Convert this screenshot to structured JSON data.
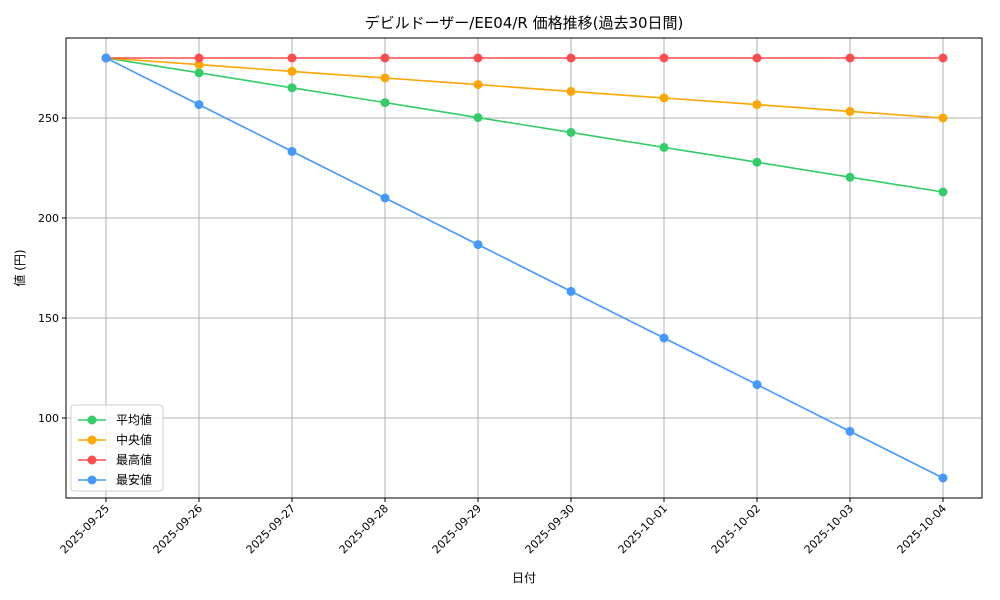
{
  "chart_data": {
    "type": "line",
    "title": "デビルドーザー/EE04/R 価格推移(過去30日間)",
    "xlabel": "日付",
    "ylabel": "値 (円)",
    "categories": [
      "2025-09-25",
      "2025-09-26",
      "2025-09-27",
      "2025-09-28",
      "2025-09-29",
      "2025-09-30",
      "2025-10-01",
      "2025-10-02",
      "2025-10-03",
      "2025-10-04"
    ],
    "ylim": [
      60,
      290
    ],
    "yticks": [
      100,
      150,
      200,
      250
    ],
    "grid": true,
    "legend_position": "lower-left",
    "series": [
      {
        "name": "平均値",
        "color": "#33cc66",
        "values": [
          280,
          272.6,
          265.1,
          257.7,
          250.2,
          242.8,
          235.3,
          227.9,
          220.4,
          213
        ]
      },
      {
        "name": "中央値",
        "color": "#ffa500",
        "values": [
          280,
          276.7,
          273.3,
          270,
          266.7,
          263.3,
          260,
          256.7,
          253.3,
          250
        ]
      },
      {
        "name": "最高値",
        "color": "#ff4d4d",
        "values": [
          280,
          280,
          280,
          280,
          280,
          280,
          280,
          280,
          280,
          280
        ]
      },
      {
        "name": "最安値",
        "color": "#4499ff",
        "values": [
          280,
          256.7,
          233.3,
          210,
          186.7,
          163.3,
          140,
          116.7,
          93.3,
          70
        ]
      }
    ]
  }
}
